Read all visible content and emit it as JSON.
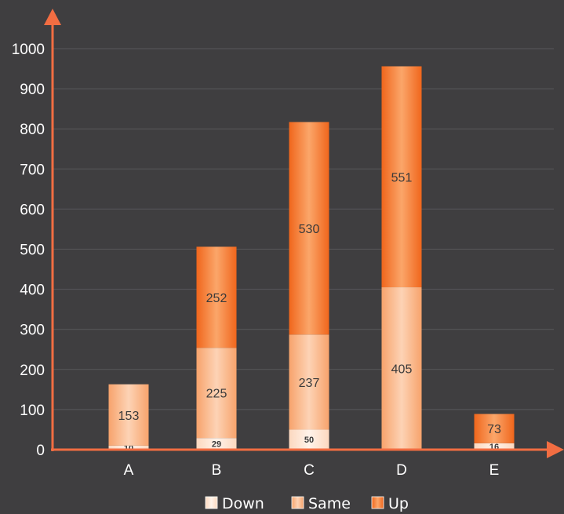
{
  "chart_data": {
    "type": "bar",
    "stacked": true,
    "title": "",
    "xlabel": "",
    "ylabel": "",
    "categories": [
      "A",
      "B",
      "C",
      "D",
      "E"
    ],
    "ylim": [
      0,
      1000
    ],
    "yticks": [
      0,
      100,
      200,
      300,
      400,
      500,
      600,
      700,
      800,
      900,
      1000
    ],
    "grid": true,
    "legend": "bottom",
    "series": [
      {
        "name": "Down",
        "values": [
          10,
          29,
          50,
          0,
          16
        ],
        "color": "#fde6d6"
      },
      {
        "name": "Same",
        "values": [
          153,
          225,
          237,
          405,
          0
        ],
        "color": "#f9b384"
      },
      {
        "name": "Up",
        "values": [
          0,
          252,
          530,
          551,
          73
        ],
        "color": "#f47a2e"
      }
    ],
    "colors": {
      "background": "#3f3e40",
      "axis": "#f26d42",
      "grid": "#59585b",
      "text": "#ffffff"
    }
  }
}
